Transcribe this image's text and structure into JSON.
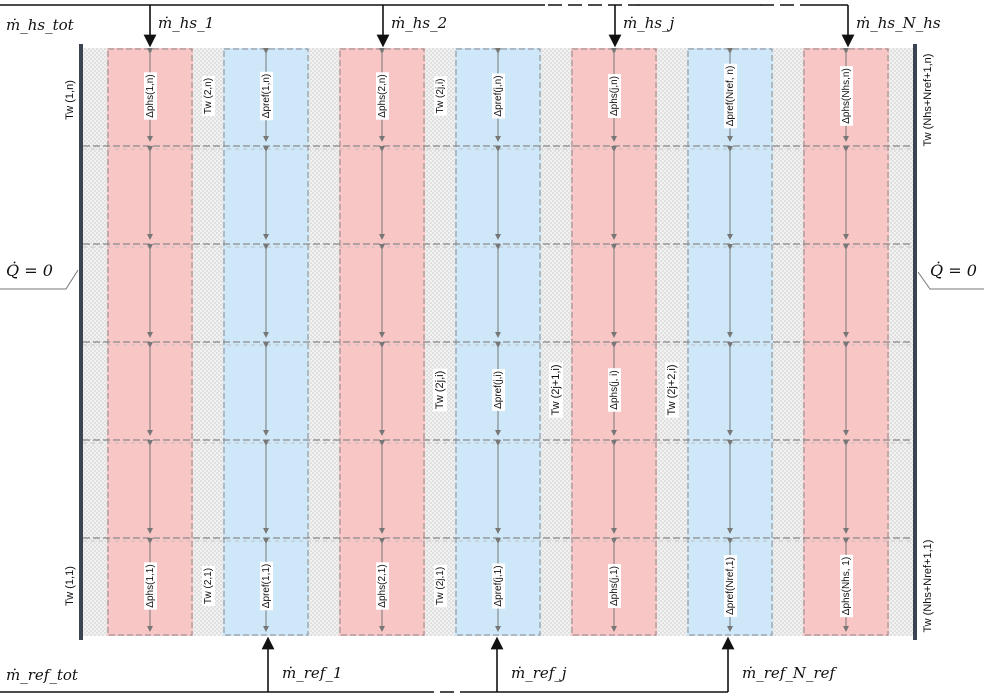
{
  "colors": {
    "hs_channel": "#f9c6c6",
    "ref_channel": "#cfe8f9",
    "wall": "#eeeeee",
    "dashed": "#8a8a8a",
    "wall_edge": "#3b4452",
    "arrow": "#111111"
  },
  "top": {
    "total": "ṁ_hs_tot",
    "flows": [
      "ṁ_hs_1",
      "ṁ_hs_2",
      "ṁ_hs_j",
      "ṁ_hs_N_hs"
    ]
  },
  "bottom": {
    "total": "ṁ_ref_tot",
    "flows": [
      "ṁ_ref_1",
      "ṁ_ref_j",
      "ṁ_ref_N_ref"
    ]
  },
  "boundary": {
    "left": "Q̇ = 0",
    "right": "Q̇ = 0"
  },
  "channel_labels": {
    "top": [
      "Δphs(1,n)",
      "Δpref(1,n)",
      "Δphs(2,n)",
      "Δpref(j,n)",
      "Δphs(j,n)",
      "Δpref(Nref, n)",
      "Δphs(Nhs,n)"
    ],
    "middle": [
      "Δpref(j,i)",
      "Δphs(j, i)"
    ],
    "bottom": [
      "Δphs(1,1)",
      "Δpref(1,1)",
      "Δphs(2,1)",
      "Δpref(j,1)",
      "Δphs(j,1)",
      "Δpref(Nref,1)",
      "Δphs(Nhs, 1)"
    ]
  },
  "wall_labels": {
    "left_top": "Tw (1,n)",
    "left_bottom": "Tw (1,1)",
    "top": [
      "Tw (2,n)",
      "Tw (2j,i)"
    ],
    "middle": [
      "Tw (2j,i)",
      "Tw (2j+1,i)",
      "Tw (2j+2,i)"
    ],
    "bottom": [
      "Tw (2,1)",
      "Tw (2j,1)"
    ],
    "right_top": "Tw (Nhs+Nref+1,n)",
    "right_bottom": "Tw (Nhs+Nref+1,1)"
  }
}
